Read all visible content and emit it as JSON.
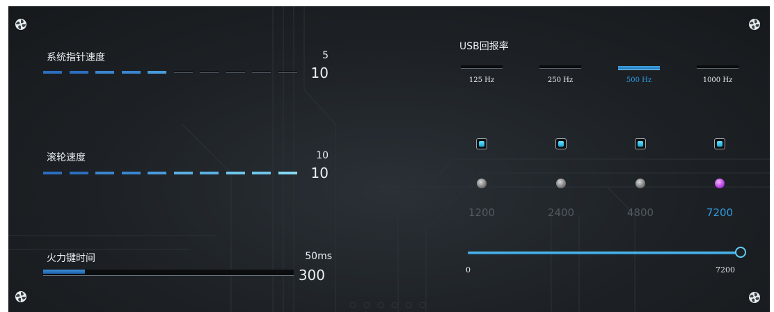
{
  "pointer_speed": {
    "label": "系统指针速度",
    "value": "5",
    "max": "10",
    "level": 0.5
  },
  "scroll_speed": {
    "label": "滚轮速度",
    "value": "10",
    "max": "10",
    "level": 1.0
  },
  "fire_key": {
    "label": "火力键时间",
    "value": "50ms",
    "max": "300",
    "level": 0.167
  },
  "usb": {
    "label": "USB回报率",
    "rates": [
      {
        "label": "125 Hz",
        "active": false
      },
      {
        "label": "250 Hz",
        "active": false
      },
      {
        "label": "500 Hz",
        "active": true
      },
      {
        "label": "1000 Hz",
        "active": false
      }
    ]
  },
  "dpi": {
    "levels": [
      {
        "value": "1200",
        "enabled": true,
        "active": false
      },
      {
        "value": "2400",
        "enabled": true,
        "active": false
      },
      {
        "value": "4800",
        "enabled": true,
        "active": false
      },
      {
        "value": "7200",
        "enabled": true,
        "active": true
      }
    ],
    "slider": {
      "min": "0",
      "max": "7200",
      "value": 7200
    }
  },
  "colors": {
    "accent": "#2f9be0",
    "active_dot": "#b53de0",
    "panel_bg": "#1d2125"
  },
  "icons": {
    "corner": "fan-screw-icon",
    "checkbox": "checkbox-icon",
    "dot": "level-dot-icon"
  }
}
